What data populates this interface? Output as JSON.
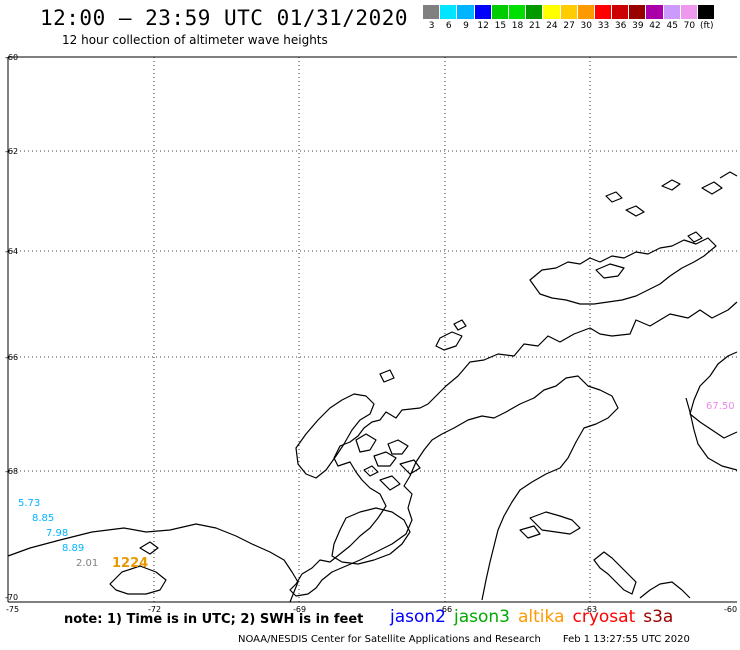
{
  "header": {
    "title": "12:00 – 23:59 UTC 01/31/2020",
    "subtitle": "12 hour collection of altimeter wave heights"
  },
  "colorbar": {
    "colors": [
      "#808080",
      "#00e5ff",
      "#00b4ff",
      "#0000ff",
      "#00cc00",
      "#00e000",
      "#009900",
      "#ffff00",
      "#ffcc00",
      "#ff9900",
      "#ff0000",
      "#cc0000",
      "#990000",
      "#aa00aa",
      "#cc99ff",
      "#ee99ee",
      "#000000"
    ],
    "labels": [
      "3",
      "6",
      "9",
      "12",
      "15",
      "18",
      "21",
      "24",
      "27",
      "30",
      "33",
      "36",
      "39",
      "42",
      "45",
      "70"
    ],
    "unit": "(ft)"
  },
  "axes": {
    "lat_labels": [
      "-60",
      "-62",
      "-64",
      "-66",
      "-68",
      "-70"
    ],
    "lon_labels": [
      "-75",
      "-72",
      "-69",
      "-66",
      "-63",
      "-60"
    ]
  },
  "observations": [
    {
      "value": "5.73",
      "color": "#00b4ff"
    },
    {
      "value": "8.85",
      "color": "#00b4ff"
    },
    {
      "value": "7.98",
      "color": "#00b4ff"
    },
    {
      "value": "8.89",
      "color": "#00b4ff"
    },
    {
      "value": "2.01",
      "color": "#808080"
    },
    {
      "value": "1224",
      "color": "#e69900"
    },
    {
      "value": "67.50",
      "color": "#ee88ee"
    }
  ],
  "note": "note: 1) Time is in UTC; 2) SWH is in feet",
  "legend": [
    {
      "name": "jason2",
      "color": "#0000ff"
    },
    {
      "name": "jason3",
      "color": "#00aa00"
    },
    {
      "name": "altika",
      "color": "#ff9900"
    },
    {
      "name": "cryosat",
      "color": "#ff0000"
    },
    {
      "name": "s3a",
      "color": "#990000"
    }
  ],
  "footer": {
    "org": "NOAA/NESDIS Center for Satellite Applications and Research",
    "timestamp": "Feb  1 13:27:55 UTC 2020"
  }
}
